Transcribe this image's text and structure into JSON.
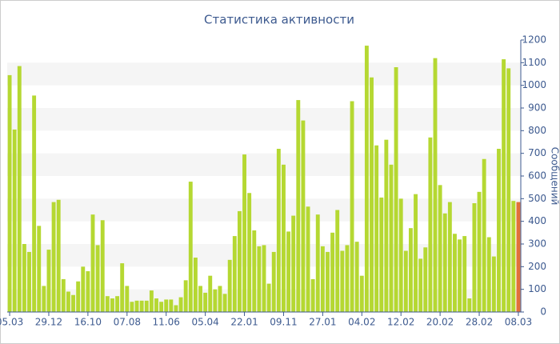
{
  "chart_data": {
    "type": "bar",
    "title": "Статистика активности",
    "y_label": "Сообщений",
    "categories": [
      "05.03",
      null,
      null,
      null,
      null,
      null,
      null,
      null,
      "29.12",
      null,
      null,
      null,
      null,
      null,
      null,
      null,
      "16.10",
      null,
      null,
      null,
      null,
      null,
      null,
      null,
      "07.08",
      null,
      null,
      null,
      null,
      null,
      null,
      null,
      "11.06",
      null,
      null,
      null,
      null,
      null,
      null,
      null,
      "05.04",
      null,
      null,
      null,
      null,
      null,
      null,
      null,
      "22.01",
      null,
      null,
      null,
      null,
      null,
      null,
      null,
      "09.11",
      null,
      null,
      null,
      null,
      null,
      null,
      null,
      "27.01",
      null,
      null,
      null,
      null,
      null,
      null,
      null,
      "04.02",
      null,
      null,
      null,
      null,
      null,
      null,
      null,
      "12.02",
      null,
      null,
      null,
      null,
      null,
      null,
      null,
      "20.02",
      null,
      null,
      null,
      null,
      null,
      null,
      null,
      "28.02",
      null,
      null,
      null,
      null,
      null,
      null,
      null,
      "08.03"
    ],
    "values": [
      1045,
      805,
      1085,
      300,
      265,
      955,
      380,
      115,
      275,
      485,
      495,
      145,
      90,
      75,
      135,
      200,
      180,
      430,
      295,
      405,
      70,
      60,
      70,
      215,
      115,
      45,
      50,
      50,
      50,
      95,
      60,
      45,
      55,
      55,
      30,
      65,
      140,
      575,
      240,
      115,
      85,
      160,
      100,
      115,
      80,
      230,
      335,
      445,
      695,
      525,
      360,
      290,
      295,
      125,
      265,
      720,
      650,
      355,
      425,
      935,
      845,
      465,
      145,
      430,
      290,
      265,
      350,
      450,
      270,
      295,
      930,
      310,
      160,
      1175,
      1035,
      735,
      505,
      760,
      650,
      1080,
      500,
      270,
      370,
      520,
      235,
      285,
      770,
      1120,
      560,
      435,
      485,
      345,
      320,
      335,
      60,
      480,
      530,
      675,
      330,
      245,
      720,
      1115,
      1075,
      490,
      485
    ],
    "color": "#b5d832",
    "highlight": {
      "index": 104,
      "color": "#e2703a"
    },
    "ylim": [
      0,
      1200
    ],
    "yticks": [
      0,
      100,
      200,
      300,
      400,
      500,
      600,
      700,
      800,
      900,
      1000,
      1100,
      1200
    ],
    "grid": true
  }
}
